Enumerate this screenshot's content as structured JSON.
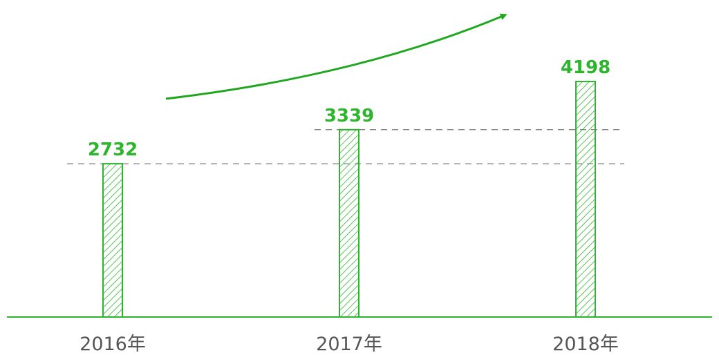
{
  "chart_data": {
    "type": "bar",
    "categories": [
      "2016年",
      "2017年",
      "2018年"
    ],
    "values": [
      2732,
      3339,
      4198
    ],
    "color": "#2db52d"
  }
}
